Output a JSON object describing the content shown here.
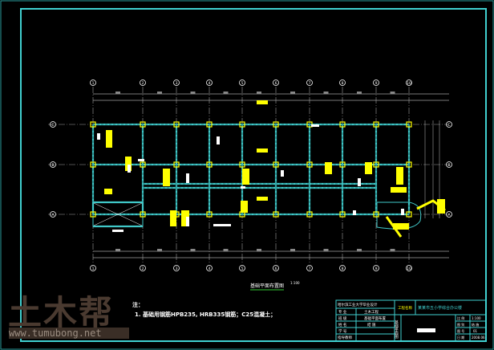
{
  "drawing": {
    "title": "基础平面布置图",
    "scale": "1:100",
    "axes_horizontal": [
      "1",
      "2",
      "3",
      "4",
      "5",
      "6",
      "7",
      "8",
      "9",
      "10"
    ],
    "axes_vertical": [
      "A",
      "B",
      "C"
    ],
    "colors": {
      "frame": "#40d0d0",
      "beam": "#40c8c8",
      "column": "#ffff00",
      "grid": "#a0a0a0",
      "text": "#ffffff"
    }
  },
  "notes": {
    "heading": "注：",
    "line1": "1. 基础用钢筋HPB235, HRB335钢筋；C25混凝土；"
  },
  "title_block": {
    "school": "哈尔滨工业大学毕业设计",
    "rows": [
      {
        "label": "专 业",
        "value": "土木工程"
      },
      {
        "label": "班 级",
        "value": "基础平面布置"
      },
      {
        "label": "姓 名",
        "value": "结 施"
      },
      {
        "label": "学 号",
        "value": ""
      },
      {
        "label": "指导教师",
        "value": ""
      }
    ],
    "project_label": "工程名称",
    "project_name": "某某市五小学综合办公楼",
    "vertical_label": "基础平面图",
    "right_cells": [
      {
        "label": "比 例",
        "value": "1:100"
      },
      {
        "label": "图 别",
        "value": "结 施"
      },
      {
        "label": "图 号",
        "value": "01"
      },
      {
        "label": "日 期",
        "value": "2008.06"
      }
    ]
  },
  "watermark": {
    "logo": "土木帮",
    "url": "www.tumubong.net"
  }
}
